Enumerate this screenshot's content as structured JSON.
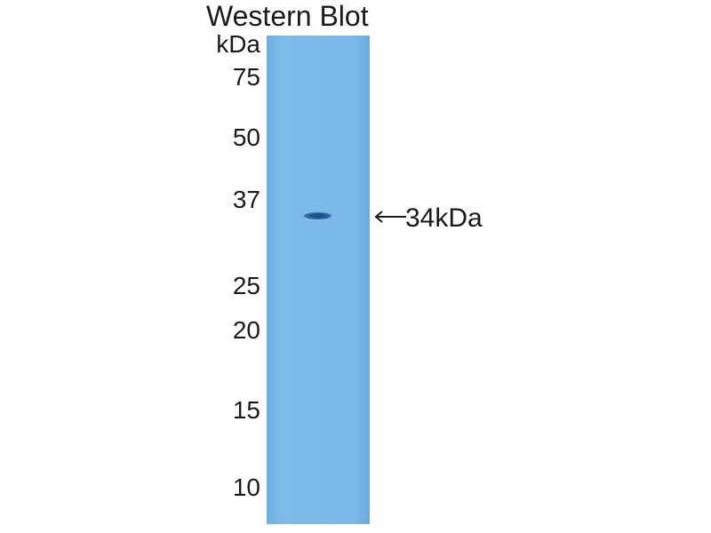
{
  "title": "Western Blot",
  "unit_label": "kDa",
  "markers": [
    "75",
    "50",
    "37",
    "25",
    "20",
    "15",
    "10"
  ],
  "band_label": "34kDa",
  "colors": {
    "lane": "#7ab9e8",
    "band": "#1f4f86"
  }
}
